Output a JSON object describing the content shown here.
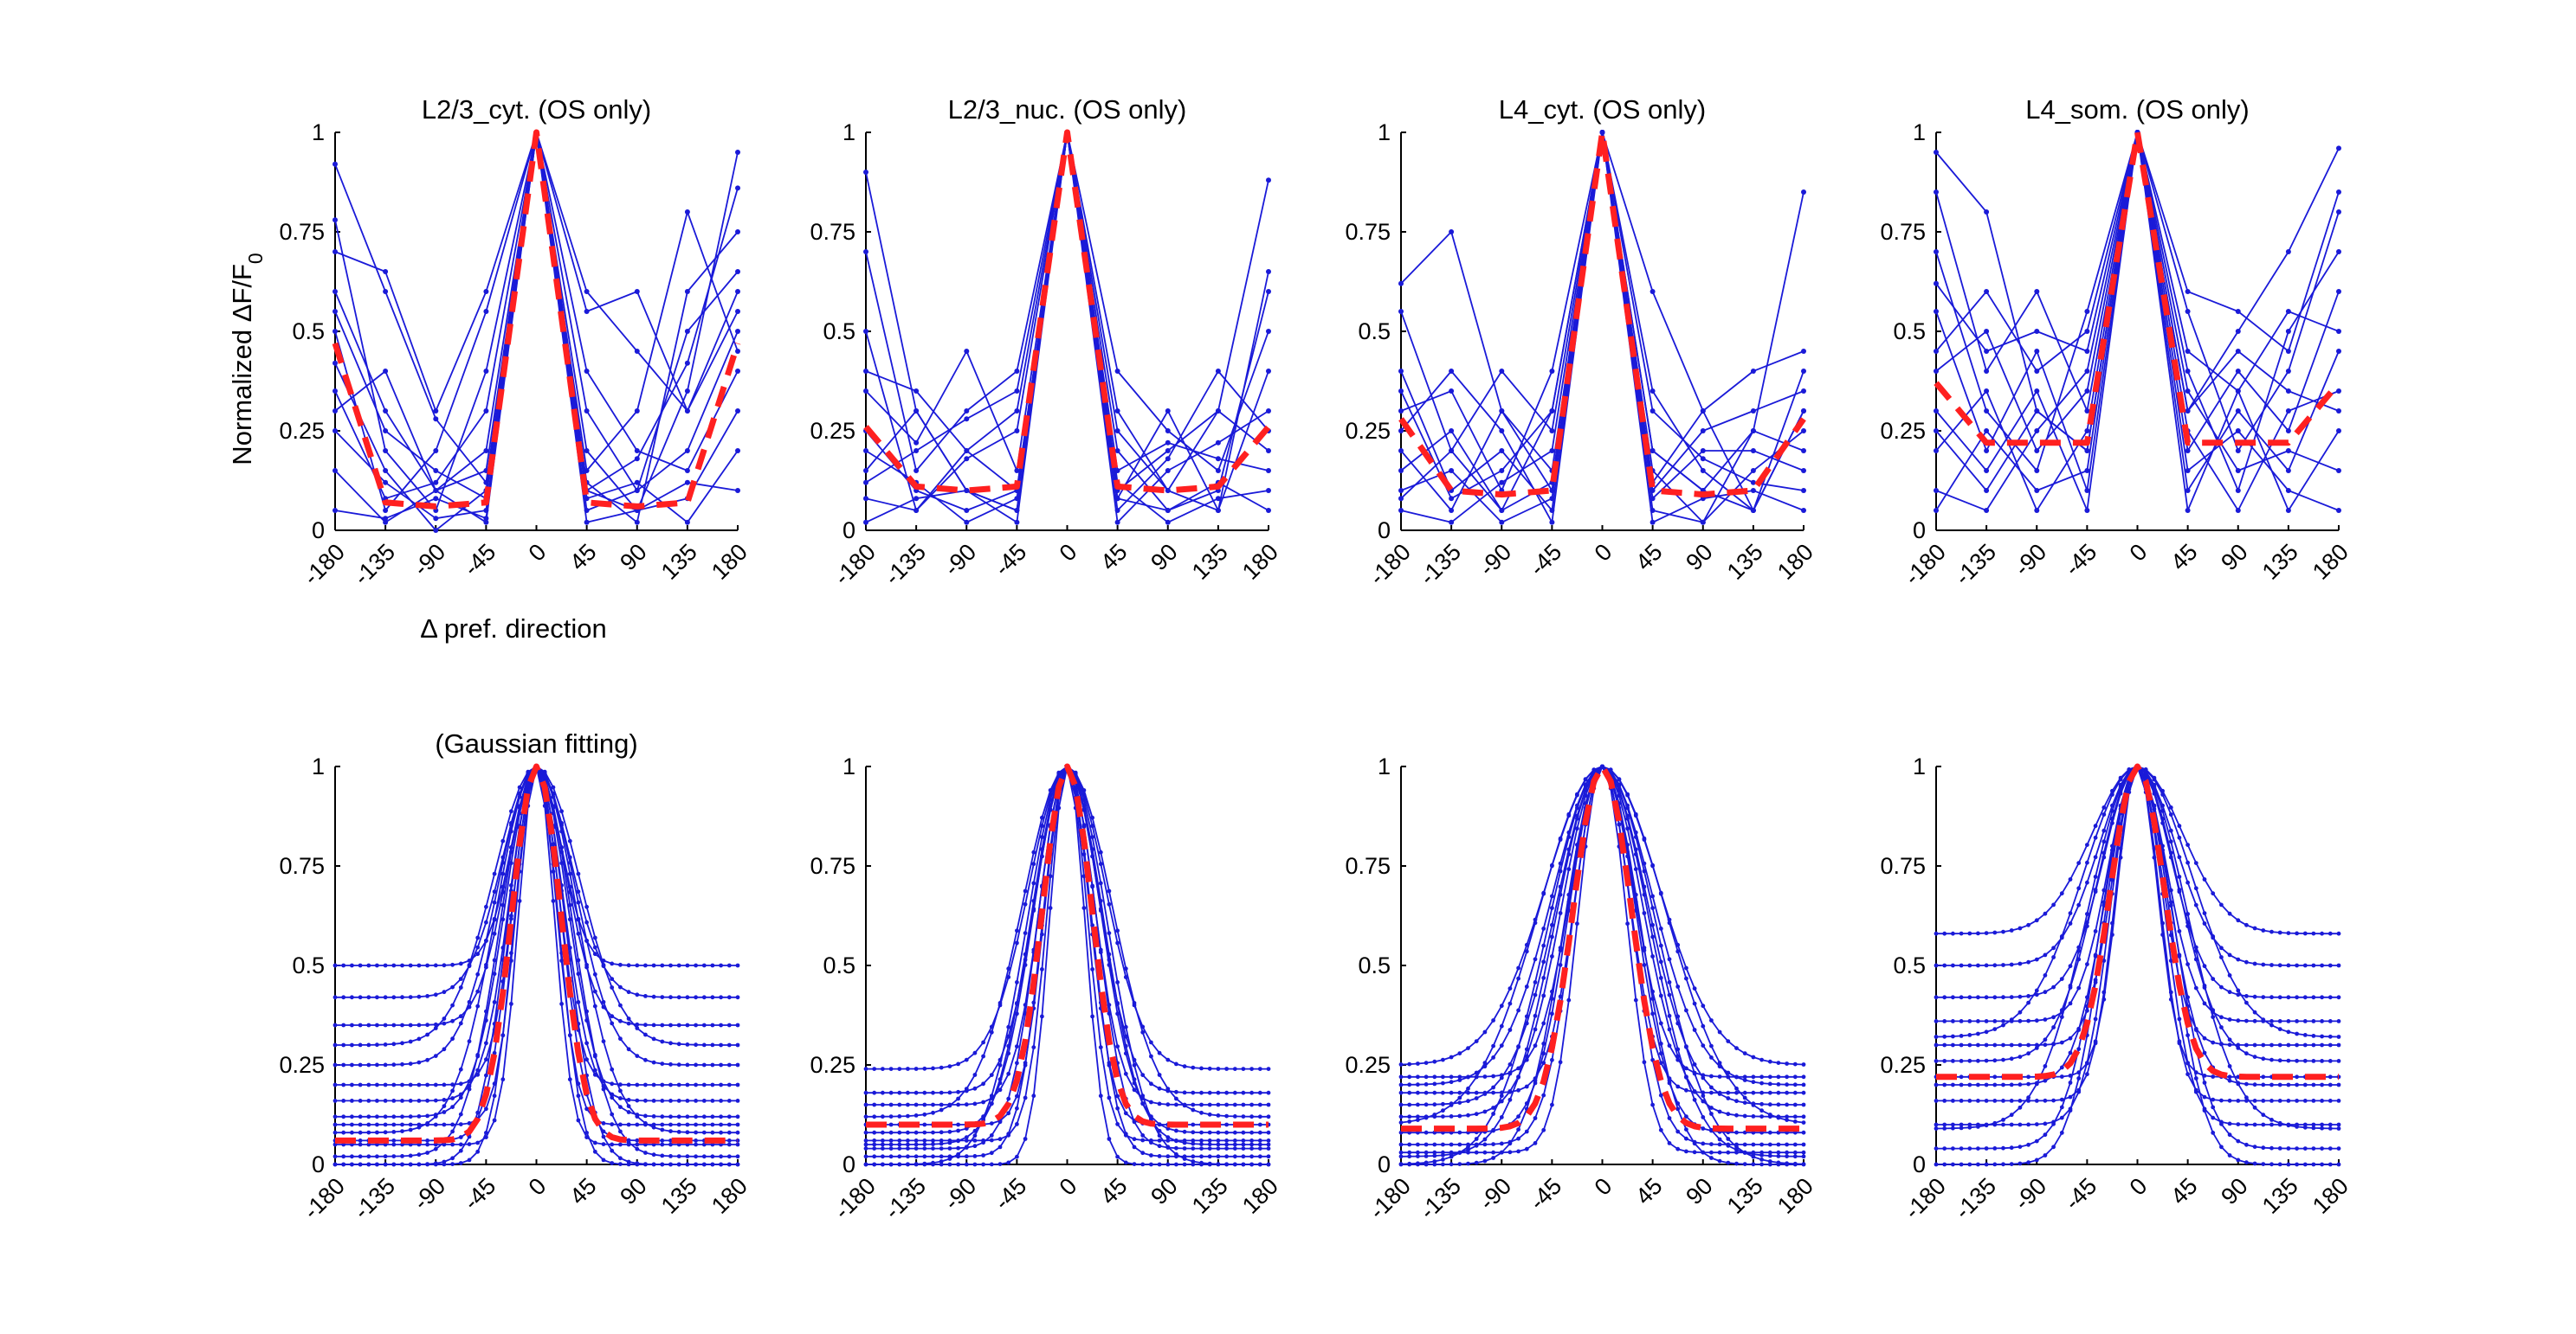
{
  "figure": {
    "ylabel": "Normalized ΔF/F",
    "ylabel_subscript": "0",
    "xlabel": "Δ pref. direction",
    "colors": {
      "traces": "#1a1ad8",
      "mean": "#ff2020",
      "axis": "#000000"
    }
  },
  "chart_data": [
    {
      "type": "line",
      "title": "L2/3_cyt. (OS only)",
      "fit": "raw",
      "x": [
        -180,
        -135,
        -90,
        -45,
        0,
        45,
        90,
        135,
        180
      ],
      "xticks": [
        -180,
        -135,
        -90,
        -45,
        0,
        45,
        90,
        135,
        180
      ],
      "yticks": [
        0,
        0.25,
        0.5,
        0.75,
        1
      ],
      "ylim": [
        0,
        1
      ],
      "xlim": [
        -180,
        180
      ],
      "mean_series": {
        "values": [
          0.47,
          0.07,
          0.06,
          0.07,
          1,
          0.07,
          0.06,
          0.07,
          0.47
        ]
      },
      "series": [
        {
          "values": [
            0.92,
            0.6,
            0.28,
            0.12,
            1,
            0.1,
            0.18,
            0.42,
            0.86
          ]
        },
        {
          "values": [
            0.78,
            0.2,
            0.05,
            0.4,
            1,
            0.2,
            0.05,
            0.35,
            0.95
          ]
        },
        {
          "values": [
            0.6,
            0.3,
            0.1,
            0.02,
            1,
            0.55,
            0.6,
            0.3,
            0.6
          ]
        },
        {
          "values": [
            0.5,
            0.05,
            0.2,
            0.55,
            1,
            0.12,
            0.02,
            0.6,
            0.75
          ]
        },
        {
          "values": [
            0.42,
            0.15,
            0.0,
            0.1,
            1,
            0.05,
            0.1,
            0.2,
            0.5
          ]
        },
        {
          "values": [
            0.35,
            0.08,
            0.12,
            0.3,
            1,
            0.4,
            0.2,
            0.15,
            0.4
          ]
        },
        {
          "values": [
            0.25,
            0.12,
            0.03,
            0.05,
            1,
            0.02,
            0.05,
            0.08,
            0.3
          ]
        },
        {
          "values": [
            0.15,
            0.02,
            0.1,
            0.2,
            1,
            0.08,
            0.12,
            0.02,
            0.2
          ]
        },
        {
          "values": [
            0.7,
            0.65,
            0.3,
            0.6,
            1,
            0.3,
            0.1,
            0.5,
            0.65
          ]
        },
        {
          "values": [
            0.05,
            0.03,
            0.08,
            0.03,
            1,
            0.1,
            0.05,
            0.12,
            0.1
          ]
        },
        {
          "values": [
            0.3,
            0.4,
            0.1,
            0.15,
            1,
            0.6,
            0.45,
            0.3,
            0.55
          ]
        },
        {
          "values": [
            0.55,
            0.25,
            0.15,
            0.08,
            1,
            0.15,
            0.3,
            0.8,
            0.45
          ]
        }
      ]
    },
    {
      "type": "line",
      "title": "L2/3_nuc. (OS only)",
      "fit": "raw",
      "x": [
        -180,
        -135,
        -90,
        -45,
        0,
        45,
        90,
        135,
        180
      ],
      "xticks": [
        -180,
        -135,
        -90,
        -45,
        0,
        45,
        90,
        135,
        180
      ],
      "yticks": [
        0,
        0.25,
        0.5,
        0.75,
        1
      ],
      "ylim": [
        0,
        1
      ],
      "xlim": [
        -180,
        180
      ],
      "mean_series": {
        "values": [
          0.26,
          0.11,
          0.1,
          0.11,
          1,
          0.11,
          0.1,
          0.11,
          0.26
        ]
      },
      "series": [
        {
          "values": [
            0.9,
            0.3,
            0.1,
            0.05,
            1,
            0.1,
            0.2,
            0.3,
            0.88
          ]
        },
        {
          "values": [
            0.7,
            0.15,
            0.3,
            0.4,
            1,
            0.2,
            0.05,
            0.1,
            0.6
          ]
        },
        {
          "values": [
            0.5,
            0.05,
            0.2,
            0.3,
            1,
            0.4,
            0.25,
            0.15,
            0.5
          ]
        },
        {
          "values": [
            0.35,
            0.22,
            0.45,
            0.15,
            1,
            0.08,
            0.3,
            0.05,
            0.4
          ]
        },
        {
          "values": [
            0.25,
            0.1,
            0.05,
            0.1,
            1,
            0.02,
            0.15,
            0.22,
            0.3
          ]
        },
        {
          "values": [
            0.15,
            0.3,
            0.1,
            0.02,
            1,
            0.3,
            0.1,
            0.3,
            0.2
          ]
        },
        {
          "values": [
            0.08,
            0.05,
            0.18,
            0.25,
            1,
            0.12,
            0.02,
            0.08,
            0.1
          ]
        },
        {
          "values": [
            0.2,
            0.12,
            0.02,
            0.08,
            1,
            0.05,
            0.18,
            0.4,
            0.25
          ]
        },
        {
          "values": [
            0.4,
            0.35,
            0.2,
            0.1,
            1,
            0.25,
            0.1,
            0.05,
            0.65
          ]
        },
        {
          "values": [
            0.02,
            0.08,
            0.1,
            0.05,
            1,
            0.08,
            0.05,
            0.12,
            0.05
          ]
        },
        {
          "values": [
            0.12,
            0.2,
            0.28,
            0.35,
            1,
            0.15,
            0.22,
            0.18,
            0.15
          ]
        }
      ]
    },
    {
      "type": "line",
      "title": "L4_cyt. (OS only)",
      "fit": "raw",
      "x": [
        -180,
        -135,
        -90,
        -45,
        0,
        45,
        90,
        135,
        180
      ],
      "xticks": [
        -180,
        -135,
        -90,
        -45,
        0,
        45,
        90,
        135,
        180
      ],
      "yticks": [
        0,
        0.25,
        0.5,
        0.75,
        1
      ],
      "ylim": [
        0,
        1
      ],
      "xlim": [
        -180,
        180
      ],
      "mean_series": {
        "values": [
          0.28,
          0.1,
          0.09,
          0.1,
          1,
          0.1,
          0.09,
          0.1,
          0.28
        ]
      },
      "series": [
        {
          "values": [
            0.62,
            0.75,
            0.3,
            0.1,
            1,
            0.2,
            0.1,
            0.25,
            0.85
          ]
        },
        {
          "values": [
            0.55,
            0.2,
            0.05,
            0.3,
            1,
            0.35,
            0.15,
            0.05,
            0.4
          ]
        },
        {
          "values": [
            0.4,
            0.1,
            0.2,
            0.05,
            1,
            0.1,
            0.25,
            0.3,
            0.35
          ]
        },
        {
          "values": [
            0.3,
            0.35,
            0.1,
            0.4,
            1,
            0.05,
            0.02,
            0.15,
            0.25
          ]
        },
        {
          "values": [
            0.2,
            0.05,
            0.3,
            0.15,
            1,
            0.2,
            0.1,
            0.05,
            0.3
          ]
        },
        {
          "values": [
            0.1,
            0.15,
            0.02,
            0.08,
            1,
            0.08,
            0.2,
            0.2,
            0.15
          ]
        },
        {
          "values": [
            0.05,
            0.02,
            0.12,
            0.2,
            1,
            0.02,
            0.08,
            0.1,
            0.05
          ]
        },
        {
          "values": [
            0.25,
            0.4,
            0.25,
            0.02,
            1,
            0.6,
            0.3,
            0.4,
            0.45
          ]
        },
        {
          "values": [
            0.15,
            0.25,
            0.05,
            0.12,
            1,
            0.15,
            0.02,
            0.25,
            0.2
          ]
        },
        {
          "values": [
            0.35,
            0.08,
            0.15,
            0.3,
            1,
            0.3,
            0.18,
            0.12,
            0.1
          ]
        },
        {
          "values": [
            0.08,
            0.2,
            0.4,
            0.25,
            1,
            0.12,
            0.3,
            0.05,
            0.3
          ]
        }
      ]
    },
    {
      "type": "line",
      "title": "L4_som. (OS only)",
      "fit": "raw",
      "x": [
        -180,
        -135,
        -90,
        -45,
        0,
        45,
        90,
        135,
        180
      ],
      "xticks": [
        -180,
        -135,
        -90,
        -45,
        0,
        45,
        90,
        135,
        180
      ],
      "yticks": [
        0,
        0.25,
        0.5,
        0.75,
        1
      ],
      "ylim": [
        0,
        1
      ],
      "xlim": [
        -180,
        180
      ],
      "mean_series": {
        "values": [
          0.37,
          0.22,
          0.22,
          0.22,
          1,
          0.22,
          0.22,
          0.22,
          0.37
        ]
      },
      "series": [
        {
          "values": [
            0.95,
            0.8,
            0.3,
            0.2,
            1,
            0.3,
            0.5,
            0.7,
            0.96
          ]
        },
        {
          "values": [
            0.85,
            0.4,
            0.6,
            0.3,
            1,
            0.55,
            0.2,
            0.4,
            0.8
          ]
        },
        {
          "values": [
            0.7,
            0.3,
            0.15,
            0.55,
            1,
            0.2,
            0.4,
            0.25,
            0.6
          ]
        },
        {
          "values": [
            0.55,
            0.2,
            0.45,
            0.1,
            1,
            0.4,
            0.1,
            0.5,
            0.7
          ]
        },
        {
          "values": [
            0.4,
            0.5,
            0.2,
            0.35,
            1,
            0.1,
            0.3,
            0.15,
            0.45
          ]
        },
        {
          "values": [
            0.3,
            0.15,
            0.35,
            0.05,
            1,
            0.25,
            0.05,
            0.3,
            0.35
          ]
        },
        {
          "values": [
            0.2,
            0.35,
            0.05,
            0.25,
            1,
            0.05,
            0.35,
            0.05,
            0.25
          ]
        },
        {
          "values": [
            0.1,
            0.05,
            0.25,
            0.4,
            1,
            0.35,
            0.15,
            0.2,
            0.15
          ]
        },
        {
          "values": [
            0.05,
            0.25,
            0.1,
            0.15,
            1,
            0.15,
            0.25,
            0.1,
            0.05
          ]
        },
        {
          "values": [
            0.45,
            0.6,
            0.4,
            0.5,
            1,
            0.45,
            0.35,
            0.55,
            0.5
          ]
        },
        {
          "values": [
            0.25,
            0.1,
            0.3,
            0.2,
            1,
            0.3,
            0.45,
            0.35,
            0.3
          ]
        },
        {
          "values": [
            0.62,
            0.45,
            0.5,
            0.45,
            1,
            0.6,
            0.55,
            0.45,
            0.85
          ]
        }
      ]
    },
    {
      "type": "line",
      "title": "(Gaussian fitting)",
      "fit": "gaussian",
      "x_step": 7.5,
      "xlim": [
        -180,
        180
      ],
      "ylim": [
        0,
        1
      ],
      "xticks": [
        -180,
        -135,
        -90,
        -45,
        0,
        45,
        90,
        135,
        180
      ],
      "yticks": [
        0,
        0.25,
        0.5,
        0.75,
        1
      ],
      "mean_series": {
        "baseline": 0.06,
        "sigma": 22
      },
      "series": [
        {
          "baseline": 0.5,
          "sigma": 22
        },
        {
          "baseline": 0.42,
          "sigma": 30
        },
        {
          "baseline": 0.35,
          "sigma": 26
        },
        {
          "baseline": 0.25,
          "sigma": 34
        },
        {
          "baseline": 0.2,
          "sigma": 20
        },
        {
          "baseline": 0.16,
          "sigma": 24
        },
        {
          "baseline": 0.12,
          "sigma": 28
        },
        {
          "baseline": 0.1,
          "sigma": 18
        },
        {
          "baseline": 0.06,
          "sigma": 22
        },
        {
          "baseline": 0.05,
          "sigma": 16
        },
        {
          "baseline": 0.02,
          "sigma": 32
        },
        {
          "baseline": 0.0,
          "sigma": 20
        },
        {
          "baseline": 0.0,
          "sigma": 26
        },
        {
          "baseline": 0.3,
          "sigma": 38
        },
        {
          "baseline": 0.08,
          "sigma": 36
        }
      ]
    },
    {
      "type": "line",
      "title": "",
      "fit": "gaussian",
      "x_step": 7.5,
      "xlim": [
        -180,
        180
      ],
      "ylim": [
        0,
        1
      ],
      "xticks": [
        -180,
        -135,
        -90,
        -45,
        0,
        45,
        90,
        135,
        180
      ],
      "yticks": [
        0,
        0.25,
        0.5,
        0.75,
        1
      ],
      "mean_series": {
        "baseline": 0.1,
        "sigma": 22
      },
      "series": [
        {
          "baseline": 0.24,
          "sigma": 34
        },
        {
          "baseline": 0.18,
          "sigma": 28
        },
        {
          "baseline": 0.15,
          "sigma": 24
        },
        {
          "baseline": 0.1,
          "sigma": 20
        },
        {
          "baseline": 0.08,
          "sigma": 30
        },
        {
          "baseline": 0.06,
          "sigma": 18
        },
        {
          "baseline": 0.04,
          "sigma": 26
        },
        {
          "baseline": 0.02,
          "sigma": 22
        },
        {
          "baseline": 0.0,
          "sigma": 16
        },
        {
          "baseline": 0.0,
          "sigma": 36
        },
        {
          "baseline": 0.12,
          "sigma": 40
        },
        {
          "baseline": 0.05,
          "sigma": 32
        }
      ]
    },
    {
      "type": "line",
      "title": "",
      "fit": "gaussian",
      "x_step": 7.5,
      "xlim": [
        -180,
        180
      ],
      "ylim": [
        0,
        1
      ],
      "xticks": [
        -180,
        -135,
        -90,
        -45,
        0,
        45,
        90,
        135,
        180
      ],
      "yticks": [
        0,
        0.25,
        0.5,
        0.75,
        1
      ],
      "mean_series": {
        "baseline": 0.09,
        "sigma": 26
      },
      "series": [
        {
          "baseline": 0.25,
          "sigma": 50
        },
        {
          "baseline": 0.2,
          "sigma": 44
        },
        {
          "baseline": 0.15,
          "sigma": 40
        },
        {
          "baseline": 0.12,
          "sigma": 36
        },
        {
          "baseline": 0.08,
          "sigma": 30
        },
        {
          "baseline": 0.05,
          "sigma": 26
        },
        {
          "baseline": 0.03,
          "sigma": 22
        },
        {
          "baseline": 0.0,
          "sigma": 48
        },
        {
          "baseline": 0.0,
          "sigma": 34
        },
        {
          "baseline": 0.22,
          "sigma": 28
        },
        {
          "baseline": 0.1,
          "sigma": 56
        },
        {
          "baseline": 0.02,
          "sigma": 42
        },
        {
          "baseline": 0.18,
          "sigma": 24
        }
      ]
    },
    {
      "type": "line",
      "title": "",
      "fit": "gaussian",
      "x_step": 7.5,
      "xlim": [
        -180,
        180
      ],
      "ylim": [
        0,
        1
      ],
      "xticks": [
        -180,
        -135,
        -90,
        -45,
        0,
        45,
        90,
        135,
        180
      ],
      "yticks": [
        0,
        0.25,
        0.5,
        0.75,
        1
      ],
      "mean_series": {
        "baseline": 0.22,
        "sigma": 24
      },
      "series": [
        {
          "baseline": 0.58,
          "sigma": 40
        },
        {
          "baseline": 0.5,
          "sigma": 34
        },
        {
          "baseline": 0.42,
          "sigma": 30
        },
        {
          "baseline": 0.36,
          "sigma": 26
        },
        {
          "baseline": 0.3,
          "sigma": 22
        },
        {
          "baseline": 0.26,
          "sigma": 36
        },
        {
          "baseline": 0.2,
          "sigma": 28
        },
        {
          "baseline": 0.16,
          "sigma": 20
        },
        {
          "baseline": 0.1,
          "sigma": 24
        },
        {
          "baseline": 0.04,
          "sigma": 32
        },
        {
          "baseline": 0.0,
          "sigma": 30
        },
        {
          "baseline": 0.09,
          "sigma": 44
        },
        {
          "baseline": 0.32,
          "sigma": 48
        },
        {
          "baseline": 0.22,
          "sigma": 18
        }
      ]
    }
  ]
}
